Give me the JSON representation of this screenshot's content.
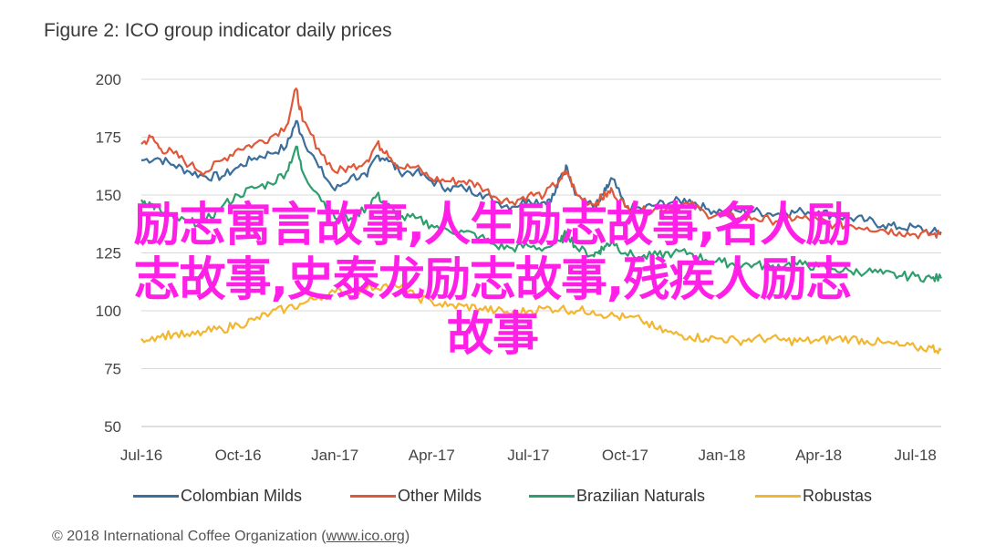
{
  "title": "Figure 2: ICO group indicator daily prices",
  "overlay_text": [
    "励志寓言故事,人生励志故事,名人励",
    "志故事,史泰龙励志故事,残疾人励志",
    "故事"
  ],
  "copyright": {
    "prefix": "© 2018 International Coffee Organization (",
    "link": "www.ico.org",
    "suffix": ")"
  },
  "colors": {
    "colombian": "#3b6e9a",
    "other": "#e0573a",
    "brazilian": "#2f9e6e",
    "robustas": "#f2b630",
    "grid": "#d9d9d9"
  },
  "chart_data": {
    "type": "line",
    "title": "Figure 2: ICO group indicator daily prices",
    "ylim": [
      50,
      200
    ],
    "yticks": [
      50,
      75,
      100,
      125,
      150,
      175,
      200
    ],
    "xticks": [
      "Jul-16",
      "Oct-16",
      "Jan-17",
      "Apr-17",
      "Jul-17",
      "Oct-17",
      "Jan-18",
      "Apr-18",
      "Jul-18"
    ],
    "xlim": [
      0,
      24.8
    ],
    "grid": true,
    "legend_position": "bottom",
    "series": [
      {
        "name": "Colombian Milds",
        "key": "colombian",
        "points": [
          [
            0,
            165
          ],
          [
            0.5,
            166
          ],
          [
            1,
            163
          ],
          [
            1.5,
            160
          ],
          [
            2,
            158
          ],
          [
            2.5,
            158
          ],
          [
            3,
            162
          ],
          [
            3.5,
            166
          ],
          [
            4,
            168
          ],
          [
            4.5,
            171
          ],
          [
            4.8,
            182
          ],
          [
            5,
            175
          ],
          [
            5.5,
            162
          ],
          [
            6,
            152
          ],
          [
            6.5,
            158
          ],
          [
            7,
            158
          ],
          [
            7.3,
            167
          ],
          [
            7.6,
            166
          ],
          [
            8,
            160
          ],
          [
            8.5,
            160
          ],
          [
            9,
            156
          ],
          [
            9.5,
            153
          ],
          [
            10,
            153
          ],
          [
            10.5,
            151
          ],
          [
            11,
            147
          ],
          [
            11.5,
            145
          ],
          [
            12,
            148
          ],
          [
            12.5,
            147
          ],
          [
            12.8,
            150
          ],
          [
            13,
            158
          ],
          [
            13.2,
            162
          ],
          [
            13.5,
            150
          ],
          [
            14,
            145
          ],
          [
            14.2,
            147
          ],
          [
            14.4,
            152
          ],
          [
            14.6,
            157
          ],
          [
            15,
            145
          ],
          [
            15.5,
            144
          ],
          [
            16,
            146
          ],
          [
            16.5,
            147
          ],
          [
            17,
            148
          ],
          [
            17.5,
            144
          ],
          [
            18,
            143
          ],
          [
            18.5,
            143
          ],
          [
            19,
            143
          ],
          [
            19.5,
            142
          ],
          [
            20,
            142
          ],
          [
            20.5,
            143
          ],
          [
            21,
            143
          ],
          [
            21.5,
            141
          ],
          [
            22,
            140
          ],
          [
            22.5,
            139
          ],
          [
            23,
            137
          ],
          [
            23.5,
            136
          ],
          [
            24,
            136
          ],
          [
            24.5,
            134
          ],
          [
            24.8,
            134
          ]
        ]
      },
      {
        "name": "Other Milds",
        "key": "other",
        "points": [
          [
            0,
            172
          ],
          [
            0.3,
            175
          ],
          [
            0.6,
            170
          ],
          [
            1,
            168
          ],
          [
            1.5,
            163
          ],
          [
            2,
            160
          ],
          [
            2.5,
            165
          ],
          [
            3,
            170
          ],
          [
            3.5,
            172
          ],
          [
            4,
            175
          ],
          [
            4.5,
            180
          ],
          [
            4.8,
            196
          ],
          [
            5,
            182
          ],
          [
            5.5,
            170
          ],
          [
            6,
            160
          ],
          [
            6.5,
            162
          ],
          [
            7,
            165
          ],
          [
            7.3,
            172
          ],
          [
            7.6,
            169
          ],
          [
            8,
            162
          ],
          [
            8.5,
            162
          ],
          [
            9,
            157
          ],
          [
            9.5,
            156
          ],
          [
            10,
            156
          ],
          [
            10.5,
            154
          ],
          [
            11,
            149
          ],
          [
            11.5,
            147
          ],
          [
            12,
            150
          ],
          [
            12.5,
            150
          ],
          [
            13,
            157
          ],
          [
            13.2,
            160
          ],
          [
            13.5,
            150
          ],
          [
            14,
            146
          ],
          [
            14.2,
            148
          ],
          [
            14.4,
            150
          ],
          [
            14.6,
            152
          ],
          [
            15,
            145
          ],
          [
            15.5,
            143
          ],
          [
            16,
            144
          ],
          [
            16.5,
            145
          ],
          [
            17,
            146
          ],
          [
            17.5,
            142
          ],
          [
            18,
            141
          ],
          [
            18.5,
            140
          ],
          [
            19,
            140
          ],
          [
            19.5,
            139
          ],
          [
            20,
            140
          ],
          [
            20.5,
            140
          ],
          [
            21,
            139
          ],
          [
            21.5,
            137
          ],
          [
            22,
            137
          ],
          [
            22.5,
            136
          ],
          [
            23,
            135
          ],
          [
            23.5,
            134
          ],
          [
            24,
            133
          ],
          [
            24.5,
            133
          ],
          [
            24.8,
            133
          ]
        ]
      },
      {
        "name": "Brazilian Naturals",
        "key": "brazilian",
        "points": [
          [
            0,
            148
          ],
          [
            0.3,
            146
          ],
          [
            0.6,
            143
          ],
          [
            1,
            140
          ],
          [
            1.5,
            138
          ],
          [
            2,
            139
          ],
          [
            2.5,
            145
          ],
          [
            3,
            150
          ],
          [
            3.5,
            153
          ],
          [
            4,
            155
          ],
          [
            4.5,
            160
          ],
          [
            4.8,
            171
          ],
          [
            5,
            160
          ],
          [
            5.5,
            150
          ],
          [
            6,
            140
          ],
          [
            6.5,
            140
          ],
          [
            7,
            145
          ],
          [
            7.3,
            150
          ],
          [
            7.6,
            146
          ],
          [
            8,
            140
          ],
          [
            8.5,
            140
          ],
          [
            9,
            137
          ],
          [
            9.5,
            135
          ],
          [
            10,
            134
          ],
          [
            10.5,
            132
          ],
          [
            11,
            128
          ],
          [
            11.5,
            127
          ],
          [
            12,
            128
          ],
          [
            12.5,
            127
          ],
          [
            13,
            130
          ],
          [
            13.2,
            134
          ],
          [
            13.5,
            127
          ],
          [
            14,
            124
          ],
          [
            14.2,
            126
          ],
          [
            14.4,
            128
          ],
          [
            14.6,
            130
          ],
          [
            15,
            125
          ],
          [
            15.5,
            123
          ],
          [
            16,
            124
          ],
          [
            16.5,
            125
          ],
          [
            17,
            125
          ],
          [
            17.5,
            122
          ],
          [
            18,
            121
          ],
          [
            18.5,
            120
          ],
          [
            19,
            120
          ],
          [
            19.5,
            119
          ],
          [
            20,
            120
          ],
          [
            20.5,
            120
          ],
          [
            21,
            119
          ],
          [
            21.5,
            118
          ],
          [
            22,
            117
          ],
          [
            22.5,
            117
          ],
          [
            23,
            116
          ],
          [
            23.5,
            115
          ],
          [
            24,
            115
          ],
          [
            24.5,
            114
          ],
          [
            24.8,
            114
          ]
        ]
      },
      {
        "name": "Robustas",
        "key": "robustas",
        "points": [
          [
            0,
            88
          ],
          [
            0.5,
            89
          ],
          [
            1,
            90
          ],
          [
            1.5,
            89
          ],
          [
            2,
            91
          ],
          [
            2.5,
            92
          ],
          [
            3,
            94
          ],
          [
            3.5,
            96
          ],
          [
            4,
            99
          ],
          [
            4.5,
            101
          ],
          [
            5,
            103
          ],
          [
            5.5,
            106
          ],
          [
            6,
            108
          ],
          [
            6.5,
            108
          ],
          [
            7,
            110
          ],
          [
            7.5,
            111
          ],
          [
            8,
            110
          ],
          [
            8.5,
            106
          ],
          [
            9,
            104
          ],
          [
            9.5,
            102
          ],
          [
            10,
            102
          ],
          [
            10.5,
            101
          ],
          [
            11,
            100
          ],
          [
            11.5,
            99
          ],
          [
            12,
            100
          ],
          [
            12.5,
            101
          ],
          [
            13,
            101
          ],
          [
            13.5,
            100
          ],
          [
            14,
            100
          ],
          [
            14.5,
            98
          ],
          [
            15,
            97
          ],
          [
            15.5,
            96
          ],
          [
            16,
            92
          ],
          [
            16.5,
            90
          ],
          [
            17,
            89
          ],
          [
            17.5,
            88
          ],
          [
            18,
            88
          ],
          [
            18.5,
            87
          ],
          [
            19,
            88
          ],
          [
            19.5,
            88
          ],
          [
            20,
            87
          ],
          [
            20.5,
            87
          ],
          [
            21,
            87
          ],
          [
            21.5,
            88
          ],
          [
            22,
            88
          ],
          [
            22.5,
            87
          ],
          [
            23,
            86
          ],
          [
            23.5,
            85
          ],
          [
            24,
            84
          ],
          [
            24.5,
            84
          ],
          [
            24.8,
            83
          ]
        ]
      }
    ]
  }
}
